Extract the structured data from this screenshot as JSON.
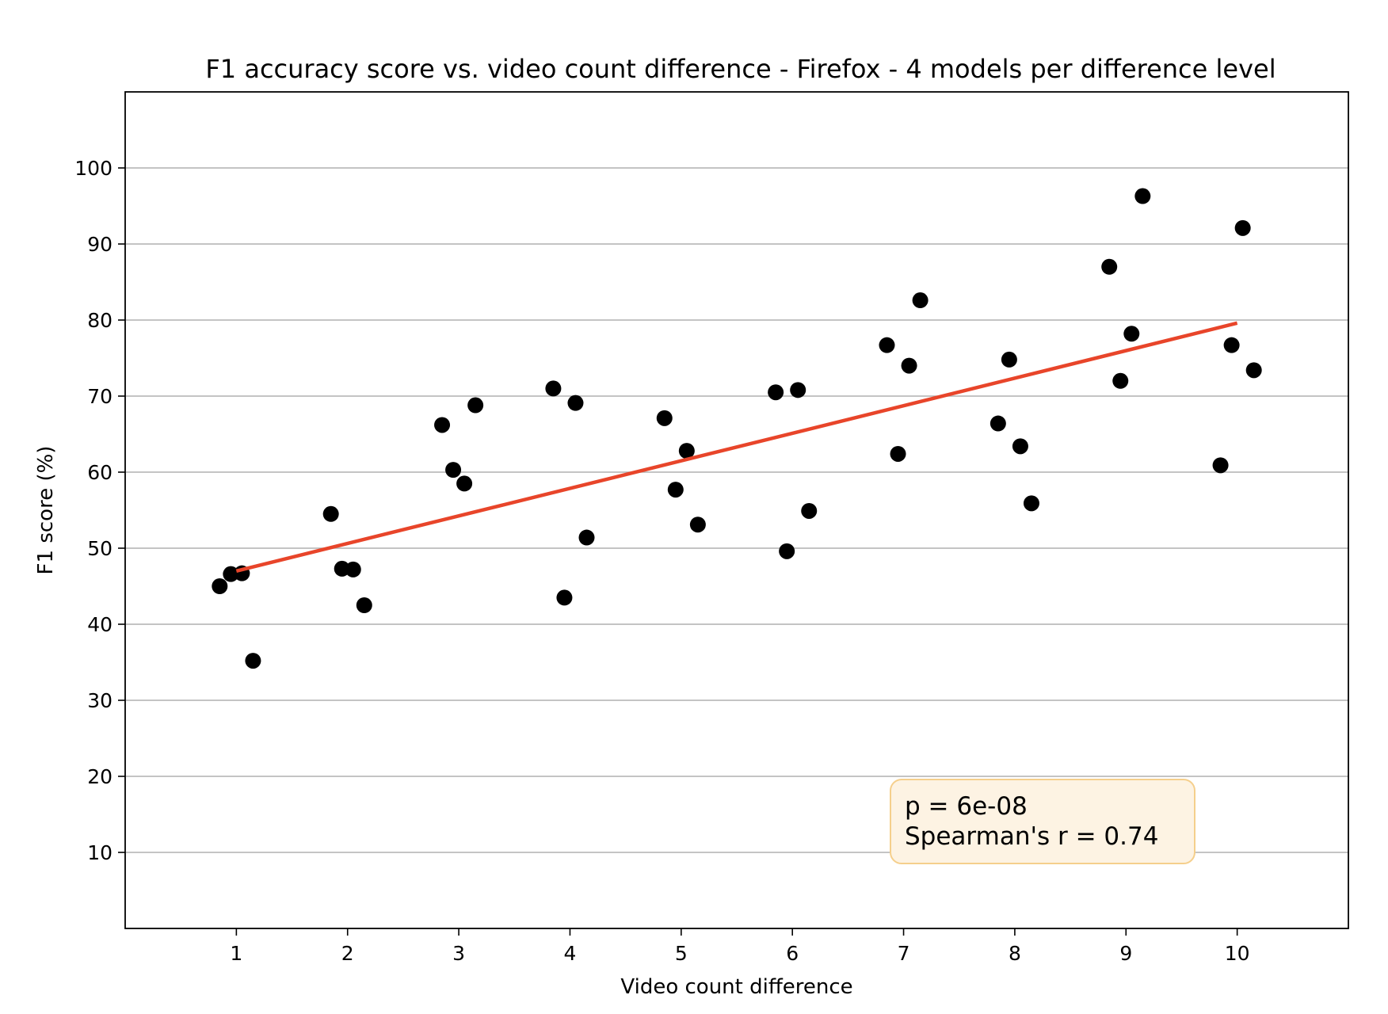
{
  "chart_data": {
    "type": "scatter",
    "title": "F1 accuracy score vs. video count difference - Firefox - 4 models per difference level",
    "xlabel": "Video count difference",
    "ylabel": "F1 score (%)",
    "xlim": [
      0,
      11
    ],
    "ylim": [
      0,
      110
    ],
    "xticks": [
      1,
      2,
      3,
      4,
      5,
      6,
      7,
      8,
      9,
      10
    ],
    "yticks": [
      10,
      20,
      30,
      40,
      50,
      60,
      70,
      80,
      90,
      100
    ],
    "grid": "horizontal",
    "colors": {
      "points": "#000000",
      "trendline": "#e8452a",
      "annotation_bg": "#fdf3e3",
      "annotation_border": "#f5cf8c",
      "grid": "#b0b0b0"
    },
    "points": [
      {
        "x": 0.85,
        "y": 45.0
      },
      {
        "x": 0.95,
        "y": 46.6
      },
      {
        "x": 1.05,
        "y": 46.7
      },
      {
        "x": 1.15,
        "y": 35.2
      },
      {
        "x": 1.85,
        "y": 54.5
      },
      {
        "x": 1.95,
        "y": 47.3
      },
      {
        "x": 2.05,
        "y": 47.2
      },
      {
        "x": 2.15,
        "y": 42.5
      },
      {
        "x": 2.85,
        "y": 66.2
      },
      {
        "x": 2.95,
        "y": 60.3
      },
      {
        "x": 3.05,
        "y": 58.5
      },
      {
        "x": 3.15,
        "y": 68.8
      },
      {
        "x": 3.85,
        "y": 71.0
      },
      {
        "x": 3.95,
        "y": 43.5
      },
      {
        "x": 4.05,
        "y": 69.1
      },
      {
        "x": 4.15,
        "y": 51.4
      },
      {
        "x": 4.85,
        "y": 67.1
      },
      {
        "x": 4.95,
        "y": 57.7
      },
      {
        "x": 5.05,
        "y": 62.8
      },
      {
        "x": 5.15,
        "y": 53.1
      },
      {
        "x": 5.85,
        "y": 70.5
      },
      {
        "x": 5.95,
        "y": 49.6
      },
      {
        "x": 6.05,
        "y": 70.8
      },
      {
        "x": 6.15,
        "y": 54.9
      },
      {
        "x": 6.85,
        "y": 76.7
      },
      {
        "x": 6.95,
        "y": 62.4
      },
      {
        "x": 7.05,
        "y": 74.0
      },
      {
        "x": 7.15,
        "y": 82.6
      },
      {
        "x": 7.85,
        "y": 66.4
      },
      {
        "x": 7.95,
        "y": 74.8
      },
      {
        "x": 8.05,
        "y": 63.4
      },
      {
        "x": 8.15,
        "y": 55.9
      },
      {
        "x": 8.85,
        "y": 87.0
      },
      {
        "x": 8.95,
        "y": 72.0
      },
      {
        "x": 9.05,
        "y": 78.2
      },
      {
        "x": 9.15,
        "y": 96.3
      },
      {
        "x": 9.85,
        "y": 60.9
      },
      {
        "x": 9.95,
        "y": 76.7
      },
      {
        "x": 10.05,
        "y": 92.1
      },
      {
        "x": 10.15,
        "y": 73.4
      }
    ],
    "trendline": {
      "x": [
        1,
        10
      ],
      "y": [
        47.0,
        79.6
      ]
    },
    "annotations": [
      "p = 6e-08",
      "Spearman's r = 0.74"
    ],
    "annotation_position": "bottom-right"
  }
}
